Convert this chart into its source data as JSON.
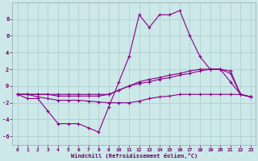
{
  "xlabel": "Windchill (Refroidissement éolien,°C)",
  "background_color": "#cce8e8",
  "grid_color": "#aacccc",
  "line_color": "#880088",
  "x_hours": [
    0,
    1,
    2,
    3,
    4,
    5,
    6,
    7,
    8,
    9,
    10,
    11,
    12,
    13,
    14,
    15,
    16,
    17,
    18,
    19,
    20,
    21,
    22,
    23
  ],
  "series1": [
    -1.0,
    -1.5,
    -1.5,
    -3.0,
    -4.5,
    -4.5,
    -4.5,
    -5.0,
    -5.5,
    -2.5,
    0.5,
    3.5,
    8.5,
    7.0,
    8.5,
    8.5,
    9.0,
    6.0,
    3.5,
    2.0,
    2.0,
    0.5,
    -1.0,
    -1.3
  ],
  "series2": [
    -1.0,
    -1.0,
    -1.0,
    -1.0,
    -1.2,
    -1.2,
    -1.2,
    -1.2,
    -1.2,
    -1.0,
    -0.5,
    0.0,
    0.5,
    0.8,
    1.0,
    1.3,
    1.5,
    1.8,
    2.0,
    2.0,
    2.0,
    1.8,
    -1.0,
    -1.3
  ],
  "series3": [
    -1.0,
    -1.0,
    -1.0,
    -1.0,
    -1.0,
    -1.0,
    -1.0,
    -1.0,
    -1.0,
    -1.0,
    -0.5,
    0.0,
    0.3,
    0.5,
    0.8,
    1.0,
    1.3,
    1.5,
    1.8,
    2.0,
    2.0,
    1.5,
    -1.0,
    -1.3
  ],
  "series4": [
    -1.0,
    -1.0,
    -1.3,
    -1.5,
    -1.7,
    -1.7,
    -1.7,
    -1.8,
    -1.9,
    -2.0,
    -2.0,
    -2.0,
    -1.8,
    -1.5,
    -1.3,
    -1.2,
    -1.0,
    -1.0,
    -1.0,
    -1.0,
    -1.0,
    -1.0,
    -1.0,
    -1.3
  ],
  "ylim": [
    -7,
    10
  ],
  "yticks": [
    -6,
    -4,
    -2,
    0,
    2,
    4,
    6,
    8
  ],
  "xticks": [
    0,
    1,
    2,
    3,
    4,
    5,
    6,
    7,
    8,
    9,
    10,
    11,
    12,
    13,
    14,
    15,
    16,
    17,
    18,
    19,
    20,
    21,
    22,
    23
  ]
}
